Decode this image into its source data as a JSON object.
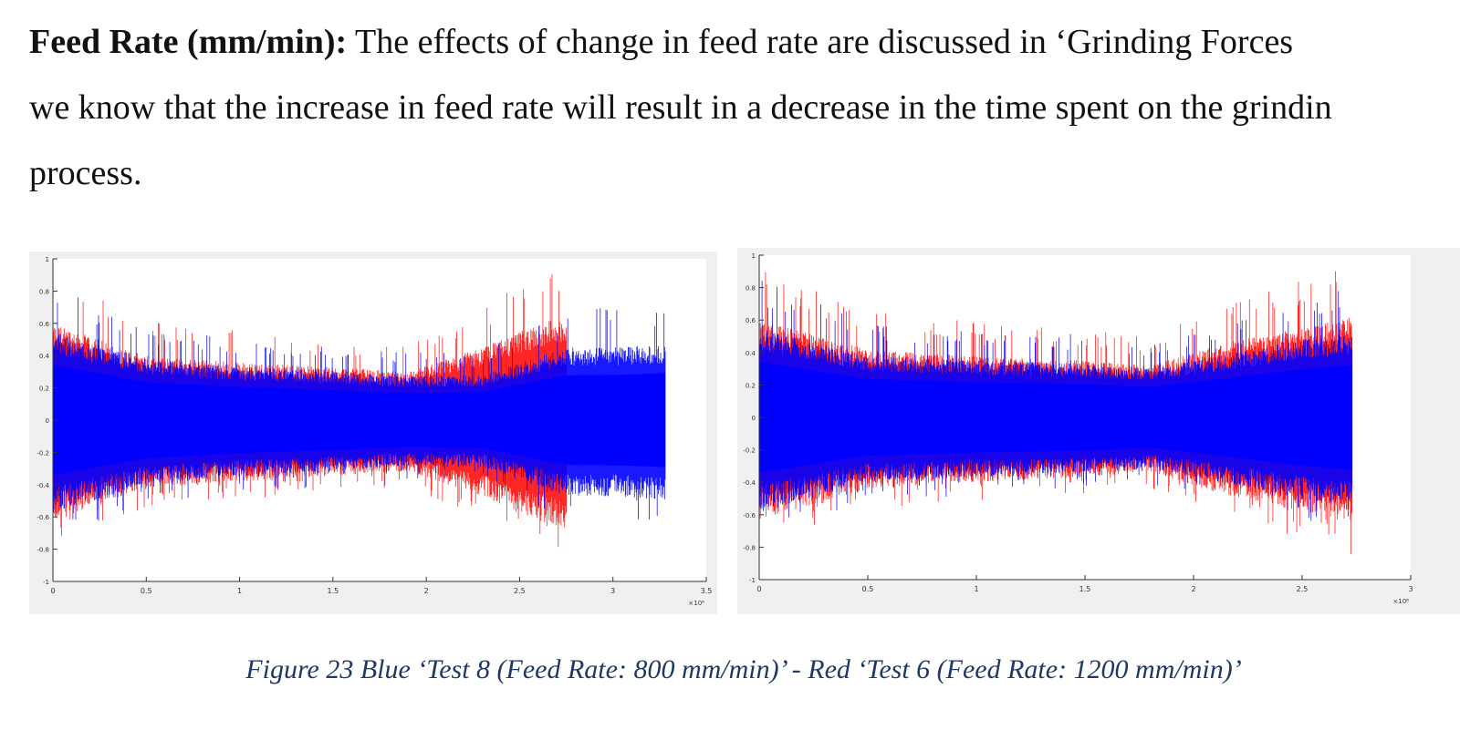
{
  "paragraph": {
    "heading": "Feed Rate (mm/min):",
    "line1": " The effects of change in feed rate are discussed in ‘Grinding Forces",
    "line2": "we know that the increase in feed rate will result in a decrease in the time spent on the grindin",
    "line3": "process."
  },
  "chart_data": [
    {
      "type": "line",
      "title": "",
      "xlabel": "",
      "ylabel": "",
      "x_multiplier_label": "×10⁶",
      "xlim": [
        0,
        3.5
      ],
      "ylim": [
        -1,
        1
      ],
      "x_ticks": [
        "0",
        "0.5",
        "1",
        "1.5",
        "2",
        "2.5",
        "3",
        "3.5"
      ],
      "y_ticks": [
        "1",
        "0.8",
        "0.6",
        "0.4",
        "0.2",
        "0",
        "-0.2",
        "-0.4",
        "-0.6",
        "-0.8",
        "-1"
      ],
      "series": [
        {
          "color": "#0000ff",
          "envelope": {
            "x": [
              0,
              0.5,
              1.0,
              1.5,
              1.9,
              2.3,
              2.75,
              3.0,
              3.28
            ],
            "amplitude": [
              0.55,
              0.38,
              0.33,
              0.3,
              0.27,
              0.28,
              0.45,
              0.45,
              0.47
            ]
          }
        },
        {
          "color": "#ff0000",
          "envelope": {
            "x": [
              0,
              0.5,
              1.0,
              1.5,
              1.9,
              2.3,
              2.5,
              2.75
            ],
            "amplitude": [
              0.6,
              0.4,
              0.36,
              0.33,
              0.3,
              0.45,
              0.55,
              0.65
            ]
          }
        }
      ]
    },
    {
      "type": "line",
      "title": "",
      "xlabel": "",
      "ylabel": "",
      "x_multiplier_label": "×10⁶",
      "xlim": [
        0,
        3
      ],
      "ylim": [
        -1,
        1
      ],
      "x_ticks": [
        "0",
        "0.5",
        "1",
        "1.5",
        "2",
        "2.5",
        "3"
      ],
      "y_ticks": [
        "1",
        "0.8",
        "0.6",
        "0.4",
        "0.2",
        "0",
        "-0.2",
        "-0.4",
        "-0.6",
        "-0.8",
        "-1"
      ],
      "series": [
        {
          "color": "#0000ff",
          "envelope": {
            "x": [
              0,
              0.5,
              1.0,
              1.5,
              1.8,
              2.2,
              2.5,
              2.73
            ],
            "amplitude": [
              0.55,
              0.38,
              0.35,
              0.33,
              0.3,
              0.4,
              0.48,
              0.52
            ]
          }
        },
        {
          "color": "#ff0000",
          "envelope": {
            "x": [
              0,
              0.5,
              1.0,
              1.5,
              1.8,
              2.2,
              2.5,
              2.73
            ],
            "amplitude": [
              0.6,
              0.42,
              0.38,
              0.35,
              0.32,
              0.48,
              0.55,
              0.62
            ]
          }
        }
      ]
    }
  ],
  "caption": "Figure 23 Blue ‘Test 8 (Feed Rate: 800 mm/min)’ - Red ‘Test 6 (Feed Rate: 1200 mm/min)’"
}
